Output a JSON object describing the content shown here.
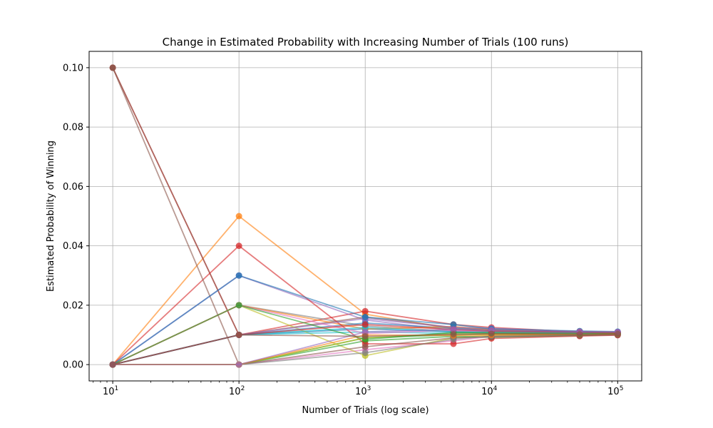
{
  "chart_data": {
    "type": "line",
    "title": "Change in Estimated Probability with Increasing Number of Trials (100 runs)",
    "xlabel": "Number of Trials (log scale)",
    "ylabel": "Estimated Probability of Winning",
    "x_scale": "log",
    "x": [
      10,
      100,
      1000,
      5000,
      10000,
      50000,
      100000
    ],
    "xlim": [
      6.5,
      155000
    ],
    "ylim": [
      -0.0055,
      0.1055
    ],
    "x_ticks": [
      {
        "value": 10,
        "base": "10",
        "exp": "1"
      },
      {
        "value": 100,
        "base": "10",
        "exp": "2"
      },
      {
        "value": 1000,
        "base": "10",
        "exp": "3"
      },
      {
        "value": 10000,
        "base": "10",
        "exp": "4"
      },
      {
        "value": 100000,
        "base": "10",
        "exp": "5"
      }
    ],
    "y_ticks": [
      {
        "value": 0.0,
        "label": "0.00"
      },
      {
        "value": 0.02,
        "label": "0.02"
      },
      {
        "value": 0.04,
        "label": "0.04"
      },
      {
        "value": 0.06,
        "label": "0.06"
      },
      {
        "value": 0.08,
        "label": "0.08"
      },
      {
        "value": 0.1,
        "label": "0.10"
      }
    ],
    "grid": true,
    "legend": "none",
    "colors": [
      "#1f77b4",
      "#ff7f0e",
      "#2ca02c",
      "#d62728",
      "#9467bd",
      "#8c564b",
      "#e377c2",
      "#7f7f7f",
      "#bcbd22",
      "#17becf"
    ],
    "series": [
      {
        "values": [
          0.0,
          0.01,
          0.012,
          0.011,
          0.0105,
          0.0104,
          0.0102
        ]
      },
      {
        "values": [
          0.0,
          0.05,
          0.017,
          0.012,
          0.0115,
          0.0106,
          0.0104
        ]
      },
      {
        "values": [
          0.0,
          0.0,
          0.009,
          0.01,
          0.0102,
          0.0101,
          0.0103
        ]
      },
      {
        "values": [
          0.1,
          0.01,
          0.018,
          0.0135,
          0.0125,
          0.011,
          0.0108
        ]
      },
      {
        "values": [
          0.0,
          0.03,
          0.015,
          0.0115,
          0.011,
          0.0103,
          0.0101
        ]
      },
      {
        "values": [
          0.1,
          0.01,
          0.016,
          0.0125,
          0.0118,
          0.0107,
          0.0105
        ]
      },
      {
        "values": [
          0.0,
          0.0,
          0.005,
          0.008,
          0.0095,
          0.0099,
          0.01
        ]
      },
      {
        "values": [
          0.0,
          0.02,
          0.013,
          0.0112,
          0.0108,
          0.0104,
          0.0106
        ]
      },
      {
        "values": [
          0.0,
          0.02,
          0.003,
          0.009,
          0.0098,
          0.0101,
          0.0102
        ]
      },
      {
        "values": [
          0.0,
          0.01,
          0.011,
          0.0105,
          0.0112,
          0.0108,
          0.0107
        ]
      },
      {
        "values": [
          0.0,
          0.01,
          0.014,
          0.0122,
          0.0115,
          0.0109,
          0.0108
        ]
      },
      {
        "values": [
          0.0,
          0.02,
          0.012,
          0.0128,
          0.0118,
          0.0112,
          0.011
        ]
      },
      {
        "values": [
          0.0,
          0.0,
          0.008,
          0.0095,
          0.0092,
          0.0098,
          0.0102
        ]
      },
      {
        "values": [
          0.0,
          0.04,
          0.007,
          0.007,
          0.0088,
          0.0096,
          0.0099
        ]
      },
      {
        "values": [
          0.0,
          0.01,
          0.0155,
          0.0125,
          0.0122,
          0.0111,
          0.0109
        ]
      },
      {
        "values": [
          0.1,
          0.0,
          0.006,
          0.009,
          0.0094,
          0.0098,
          0.01
        ]
      },
      {
        "values": [
          0.0,
          0.02,
          0.0105,
          0.0115,
          0.011,
          0.0105,
          0.0106
        ]
      },
      {
        "values": [
          0.0,
          0.0,
          0.004,
          0.0085,
          0.0096,
          0.0101,
          0.0103
        ]
      },
      {
        "values": [
          0.0,
          0.0,
          0.009,
          0.0105,
          0.0104,
          0.0103,
          0.0104
        ]
      },
      {
        "values": [
          0.0,
          0.01,
          0.0125,
          0.011,
          0.0109,
          0.0107,
          0.0106
        ]
      },
      {
        "values": [
          0.0,
          0.03,
          0.016,
          0.0135,
          0.012,
          0.0113,
          0.0111
        ]
      },
      {
        "values": [
          0.0,
          0.0,
          0.01,
          0.0098,
          0.01,
          0.0102,
          0.0104
        ]
      },
      {
        "values": [
          0.0,
          0.02,
          0.0085,
          0.0108,
          0.0107,
          0.0104,
          0.0105
        ]
      },
      {
        "values": [
          0.0,
          0.01,
          0.0135,
          0.0118,
          0.0113,
          0.0109,
          0.0107
        ]
      },
      {
        "values": [
          0.0,
          0.0,
          0.011,
          0.0118,
          0.0116,
          0.0111,
          0.011
        ]
      },
      {
        "values": [
          0.0,
          0.01,
          0.0095,
          0.0102,
          0.0104,
          0.0102,
          0.0103
        ]
      }
    ]
  }
}
